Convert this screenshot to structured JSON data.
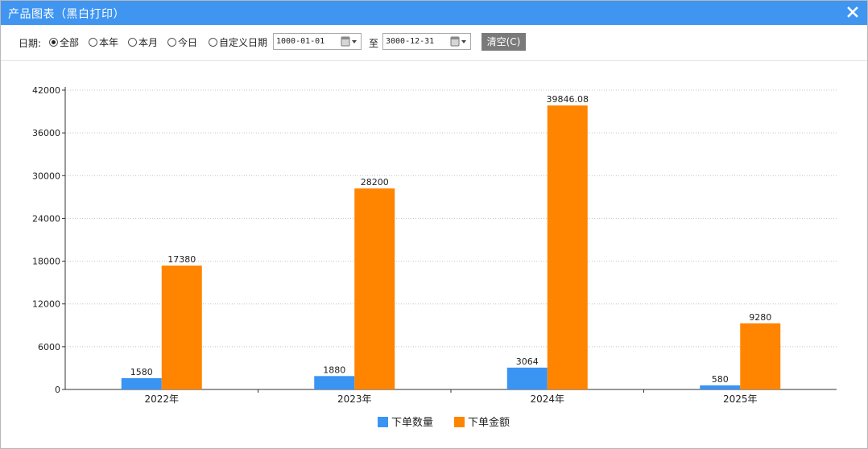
{
  "window": {
    "title": "产品图表（黑白打印）"
  },
  "filter": {
    "date_label": "日期:",
    "options": [
      "全部",
      "本年",
      "本月",
      "今日",
      "自定义日期"
    ],
    "selected": 0,
    "start_date": "1000-01-01",
    "to_label": "至",
    "end_date": "3000-12-31",
    "clear_label": "清空(C)"
  },
  "chart_data": {
    "type": "bar",
    "categories": [
      "2022年",
      "2023年",
      "2024年",
      "2025年"
    ],
    "series": [
      {
        "name": "下单数量",
        "values": [
          1580,
          1880,
          3064,
          580
        ],
        "labels": [
          "1580",
          "1880",
          "3064",
          "580"
        ],
        "color": "#3a94f2"
      },
      {
        "name": "下单金额",
        "values": [
          17380,
          28200,
          39846.08,
          9280
        ],
        "labels": [
          "17380",
          "28200",
          "39846.08",
          "9280"
        ],
        "color": "#ff8400"
      }
    ],
    "ylim": [
      0,
      42000
    ],
    "yticks": [
      "0",
      "6000",
      "12000",
      "18000",
      "24000",
      "30000",
      "36000",
      "42000"
    ],
    "grid": true,
    "legend": "bottom-center"
  },
  "colors": {
    "title_bar": "#3f95f0",
    "clear_button": "#7a7a7a"
  },
  "icons": {
    "close": "close-icon",
    "calendar": "calendar-icon",
    "dropdown": "chevron-down-icon"
  }
}
